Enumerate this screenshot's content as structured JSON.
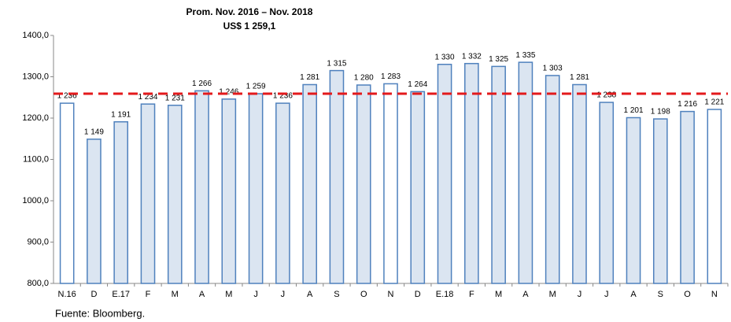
{
  "chart_data": {
    "type": "bar",
    "categories": [
      "N.16",
      "D",
      "E.17",
      "F",
      "M",
      "A",
      "M",
      "J",
      "J",
      "A",
      "S",
      "O",
      "N",
      "D",
      "E.18",
      "F",
      "M",
      "A",
      "M",
      "J",
      "J",
      "A",
      "S",
      "O",
      "N"
    ],
    "values": [
      1236,
      1149,
      1191,
      1234,
      1231,
      1266,
      1246,
      1259,
      1236,
      1281,
      1315,
      1280,
      1283,
      1264,
      1330,
      1332,
      1325,
      1335,
      1303,
      1281,
      1238,
      1201,
      1198,
      1216,
      1221
    ],
    "value_labels": [
      "1 236",
      "1 149",
      "1 191",
      "1 234",
      "1 231",
      "1 266",
      "1 246",
      "1 259",
      "1 236",
      "1 281",
      "1 315",
      "1 280",
      "1 283",
      "1 264",
      "1 330",
      "1 332",
      "1 325",
      "1 335",
      "1 303",
      "1 281",
      "1 238",
      "1 201",
      "1 198",
      "1 216",
      "1 221"
    ],
    "colors": [
      "#ffffff",
      "#dbe5f1",
      "#dbe5f1",
      "#dbe5f1",
      "#dbe5f1",
      "#dbe5f1",
      "#dbe5f1",
      "#dbe5f1",
      "#dbe5f1",
      "#dbe5f1",
      "#dbe5f1",
      "#dbe5f1",
      "#ffffff",
      "#dbe5f1",
      "#dbe5f1",
      "#dbe5f1",
      "#dbe5f1",
      "#dbe5f1",
      "#dbe5f1",
      "#dbe5f1",
      "#dbe5f1",
      "#dbe5f1",
      "#dbe5f1",
      "#dbe5f1",
      "#ffffff"
    ],
    "border_color": "#4f81bd",
    "ylim": [
      800,
      1400
    ],
    "yticks": [
      {
        "value": 800,
        "label": "800,0"
      },
      {
        "value": 900,
        "label": "900,0"
      },
      {
        "value": 1000,
        "label": "1000,0"
      },
      {
        "value": 1100,
        "label": "1100,0"
      },
      {
        "value": 1200,
        "label": "1200,0"
      },
      {
        "value": 1300,
        "label": "1300,0"
      },
      {
        "value": 1400,
        "label": "1400,0"
      }
    ],
    "grid": false,
    "reference_line": {
      "value": 1259.1,
      "title": "Prom. Nov. 2016 – Nov. 2018",
      "label": "US$ 1 259,1",
      "color": "#e31a1c"
    },
    "source": "Fuente: Bloomberg."
  }
}
